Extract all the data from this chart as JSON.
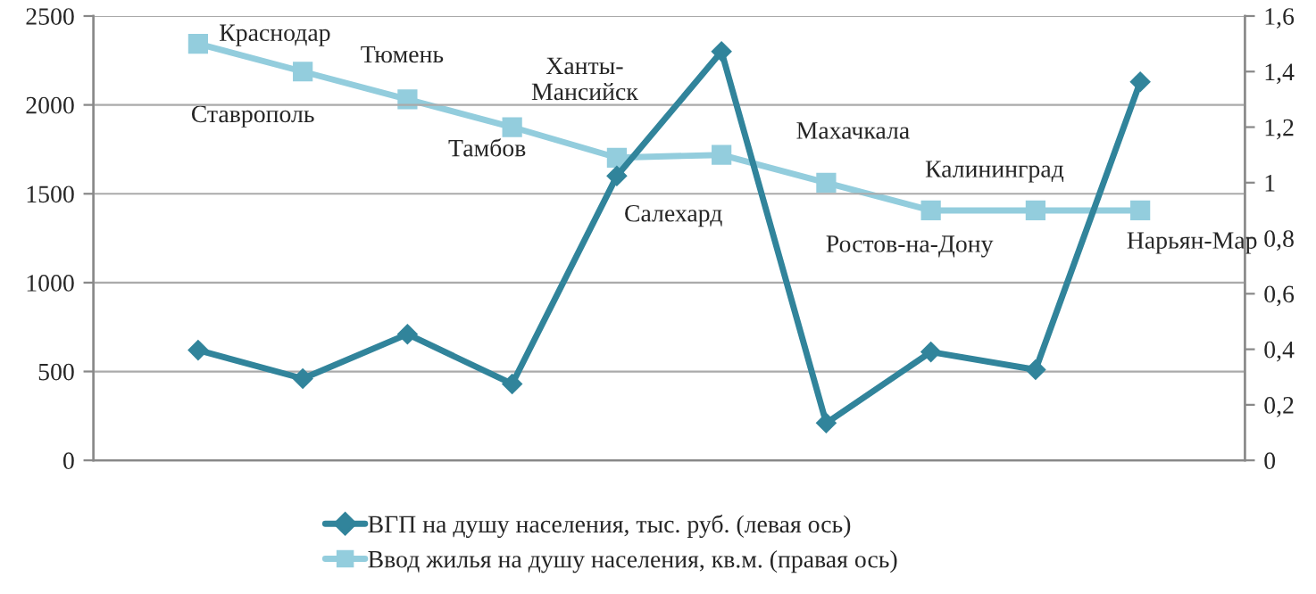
{
  "chart_data": {
    "type": "line",
    "categories": [
      null,
      null,
      null,
      null,
      null,
      null,
      null,
      null,
      null,
      null
    ],
    "series": [
      {
        "name": "ВГП на душу населения, тыс. руб. (левая ось)",
        "color": "#31849b",
        "marker": "diamond",
        "values": [
          620,
          460,
          710,
          430,
          1600,
          2300,
          210,
          610,
          510,
          2130
        ]
      },
      {
        "name": "Ввод жилья на душу населения, кв.м. (правая ось)",
        "color": "#93cddd",
        "marker": "square",
        "axis": "y2",
        "values": [
          1.5,
          1.4,
          1.3,
          1.2,
          1.09,
          1.1,
          1.0,
          0.9,
          0.9,
          0.9
        ]
      }
    ],
    "ylim": [
      0,
      2500
    ],
    "yticks": [
      0,
      500,
      1000,
      1500,
      2000,
      2500
    ],
    "y2lim": [
      0,
      1.6
    ],
    "y2ticks": [
      0,
      {
        "value": 0.2,
        "label": "0,2"
      },
      {
        "value": 0.4,
        "label": "0,4"
      },
      {
        "value": 0.6,
        "label": "0,6"
      },
      {
        "value": 0.8,
        "label": "0,8"
      },
      1,
      {
        "value": 1.2,
        "label": "1,2"
      },
      {
        "value": 1.4,
        "label": "1,4"
      },
      {
        "value": 1.6,
        "label": "1,6"
      }
    ],
    "annotations": [
      "Краснодар",
      "Ставрополь",
      "Тюмень",
      "Тамбов",
      "Ханты-\nМансийск",
      "Салехард",
      "Махачкала",
      "Ростов-на-Дону",
      "Калининград",
      "Нарьян-Мар"
    ],
    "grid": "y",
    "legend": "bottom",
    "line_style": "solid"
  }
}
